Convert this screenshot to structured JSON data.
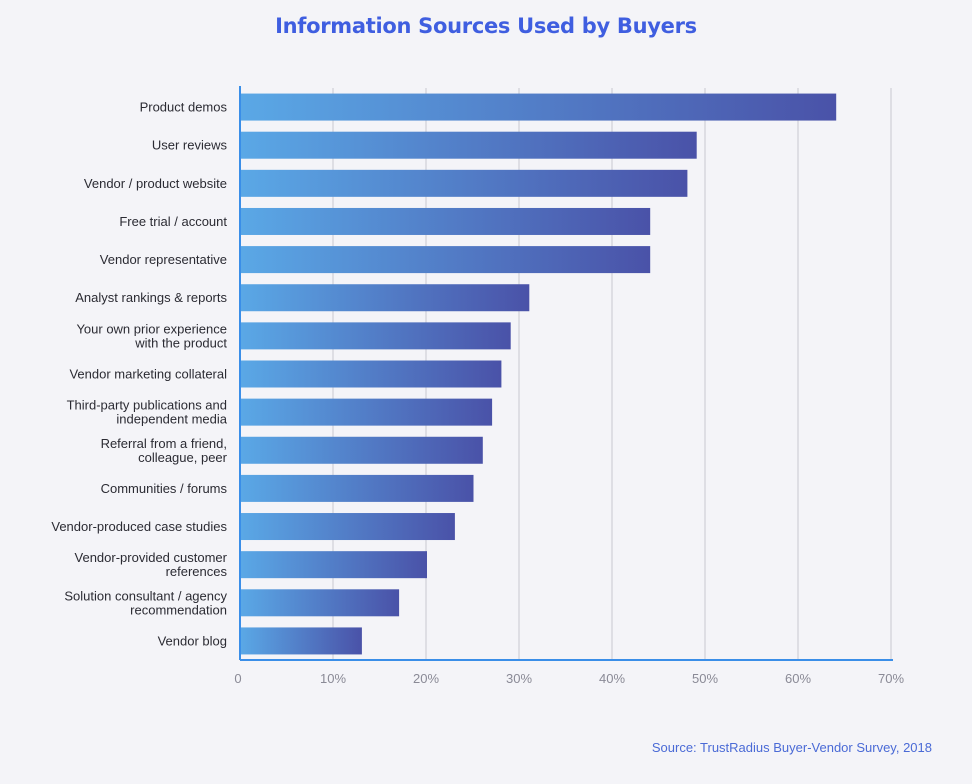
{
  "chart_data": {
    "type": "bar",
    "orientation": "horizontal",
    "title": "Information Sources Used by Buyers",
    "categories": [
      [
        "Product demos"
      ],
      [
        "User reviews"
      ],
      [
        "Vendor / product website"
      ],
      [
        "Free trial / account"
      ],
      [
        "Vendor representative"
      ],
      [
        "Analyst rankings & reports"
      ],
      [
        "Your own prior experience",
        "with the product"
      ],
      [
        "Vendor marketing collateral"
      ],
      [
        "Third-party publications and",
        "independent media"
      ],
      [
        "Referral from a friend,",
        "colleague, peer"
      ],
      [
        "Communities / forums"
      ],
      [
        "Vendor-produced case studies"
      ],
      [
        "Vendor-provided customer",
        "references"
      ],
      [
        "Solution consultant / agency",
        "recommendation"
      ],
      [
        "Vendor blog"
      ]
    ],
    "values": [
      64,
      49,
      48,
      44,
      44,
      31,
      29,
      28,
      27,
      26,
      25,
      23,
      20,
      17,
      13
    ],
    "xlim": [
      0,
      70
    ],
    "xticks": [
      0,
      10,
      20,
      30,
      40,
      50,
      60,
      70
    ],
    "xtick_labels": [
      "0",
      "10%",
      "20%",
      "30%",
      "40%",
      "50%",
      "60%",
      "70%"
    ],
    "grid": true,
    "bar_gradient": [
      "#5aa8e6",
      "#4a52a8"
    ],
    "axis_color": "#3a8ee8",
    "source": "Source: TrustRadius Buyer-Vendor Survey, 2018"
  }
}
